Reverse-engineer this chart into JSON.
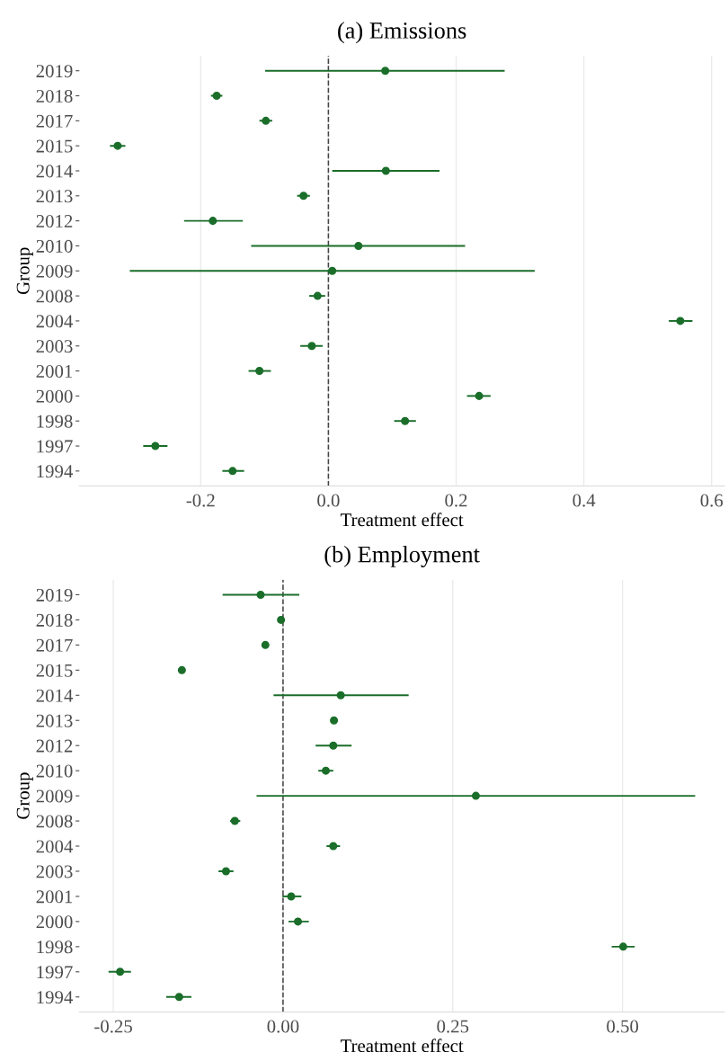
{
  "chart_data": [
    {
      "type": "scatter",
      "orientation": "horizontal",
      "title": "(a) Emissions",
      "xlabel": "Treatment effect",
      "ylabel": "Group",
      "categories": [
        "2019",
        "2018",
        "2017",
        "2015",
        "2014",
        "2013",
        "2012",
        "2010",
        "2009",
        "2008",
        "2004",
        "2003",
        "2001",
        "2000",
        "1998",
        "1997",
        "1994"
      ],
      "series": [
        {
          "color": "#1a6e2a",
          "values": [
            0.089,
            -0.175,
            -0.098,
            -0.33,
            0.09,
            -0.039,
            -0.181,
            0.047,
            0.006,
            -0.017,
            0.551,
            -0.026,
            -0.108,
            0.236,
            0.12,
            -0.271,
            -0.15
          ],
          "errors": [
            [
              -0.099,
              0.276
            ],
            [
              -0.184,
              -0.166
            ],
            [
              -0.108,
              -0.088
            ],
            [
              -0.342,
              -0.318
            ],
            [
              0.006,
              0.174
            ],
            [
              -0.049,
              -0.029
            ],
            [
              -0.226,
              -0.134
            ],
            [
              -0.121,
              0.214
            ],
            [
              -0.311,
              0.323
            ],
            [
              -0.03,
              -0.005
            ],
            [
              0.533,
              0.57
            ],
            [
              -0.044,
              -0.009
            ],
            [
              -0.125,
              -0.09
            ],
            [
              0.217,
              0.254
            ],
            [
              0.103,
              0.137
            ],
            [
              -0.29,
              -0.252
            ],
            [
              -0.166,
              -0.132
            ]
          ]
        }
      ],
      "xlim": [
        -0.39,
        0.62
      ],
      "xticks": [
        {
          "value": -0.2,
          "label": "-0.2"
        },
        {
          "value": 0.0,
          "label": "0.0"
        },
        0.2,
        0.4,
        0.6
      ],
      "ref_lines": [
        {
          "axis": "x",
          "value": 0,
          "color": "#444444",
          "line_style": "dashed"
        }
      ],
      "grid": "x",
      "marker": "circle"
    },
    {
      "type": "scatter",
      "orientation": "horizontal",
      "title": "(b) Employment",
      "xlabel": "Treatment effect",
      "ylabel": "Group",
      "categories": [
        "2019",
        "2018",
        "2017",
        "2015",
        "2014",
        "2013",
        "2012",
        "2010",
        "2009",
        "2008",
        "2004",
        "2003",
        "2001",
        "2000",
        "1998",
        "1997",
        "1994"
      ],
      "series": [
        {
          "color": "#1a6e2a",
          "values": [
            -0.033,
            -0.003,
            -0.026,
            -0.149,
            0.085,
            0.075,
            0.074,
            0.063,
            0.284,
            -0.071,
            0.074,
            -0.084,
            0.012,
            0.022,
            0.501,
            -0.24,
            -0.153
          ],
          "errors": [
            [
              -0.089,
              0.024
            ],
            [
              -0.005,
              -0.001
            ],
            [
              -0.03,
              -0.022
            ],
            [
              -0.153,
              -0.145
            ],
            [
              -0.014,
              0.185
            ],
            [
              0.07,
              0.08
            ],
            [
              0.048,
              0.101
            ],
            [
              0.052,
              0.074
            ],
            [
              -0.039,
              0.607
            ],
            [
              -0.078,
              -0.063
            ],
            [
              0.064,
              0.084
            ],
            [
              -0.095,
              -0.073
            ],
            [
              -0.001,
              0.027
            ],
            [
              0.008,
              0.038
            ],
            [
              0.484,
              0.518
            ],
            [
              -0.257,
              -0.224
            ],
            [
              -0.172,
              -0.135
            ]
          ]
        }
      ],
      "xlim": [
        -0.3,
        0.65
      ],
      "xticks": [
        {
          "value": -0.25,
          "label": "-0.25"
        },
        {
          "value": 0.0,
          "label": "0.00"
        },
        {
          "value": 0.25,
          "label": "0.25"
        },
        {
          "value": 0.5,
          "label": "0.50"
        }
      ],
      "ref_lines": [
        {
          "axis": "x",
          "value": 0,
          "color": "#444444",
          "line_style": "dashed"
        }
      ],
      "grid": "x",
      "marker": "circle"
    }
  ]
}
